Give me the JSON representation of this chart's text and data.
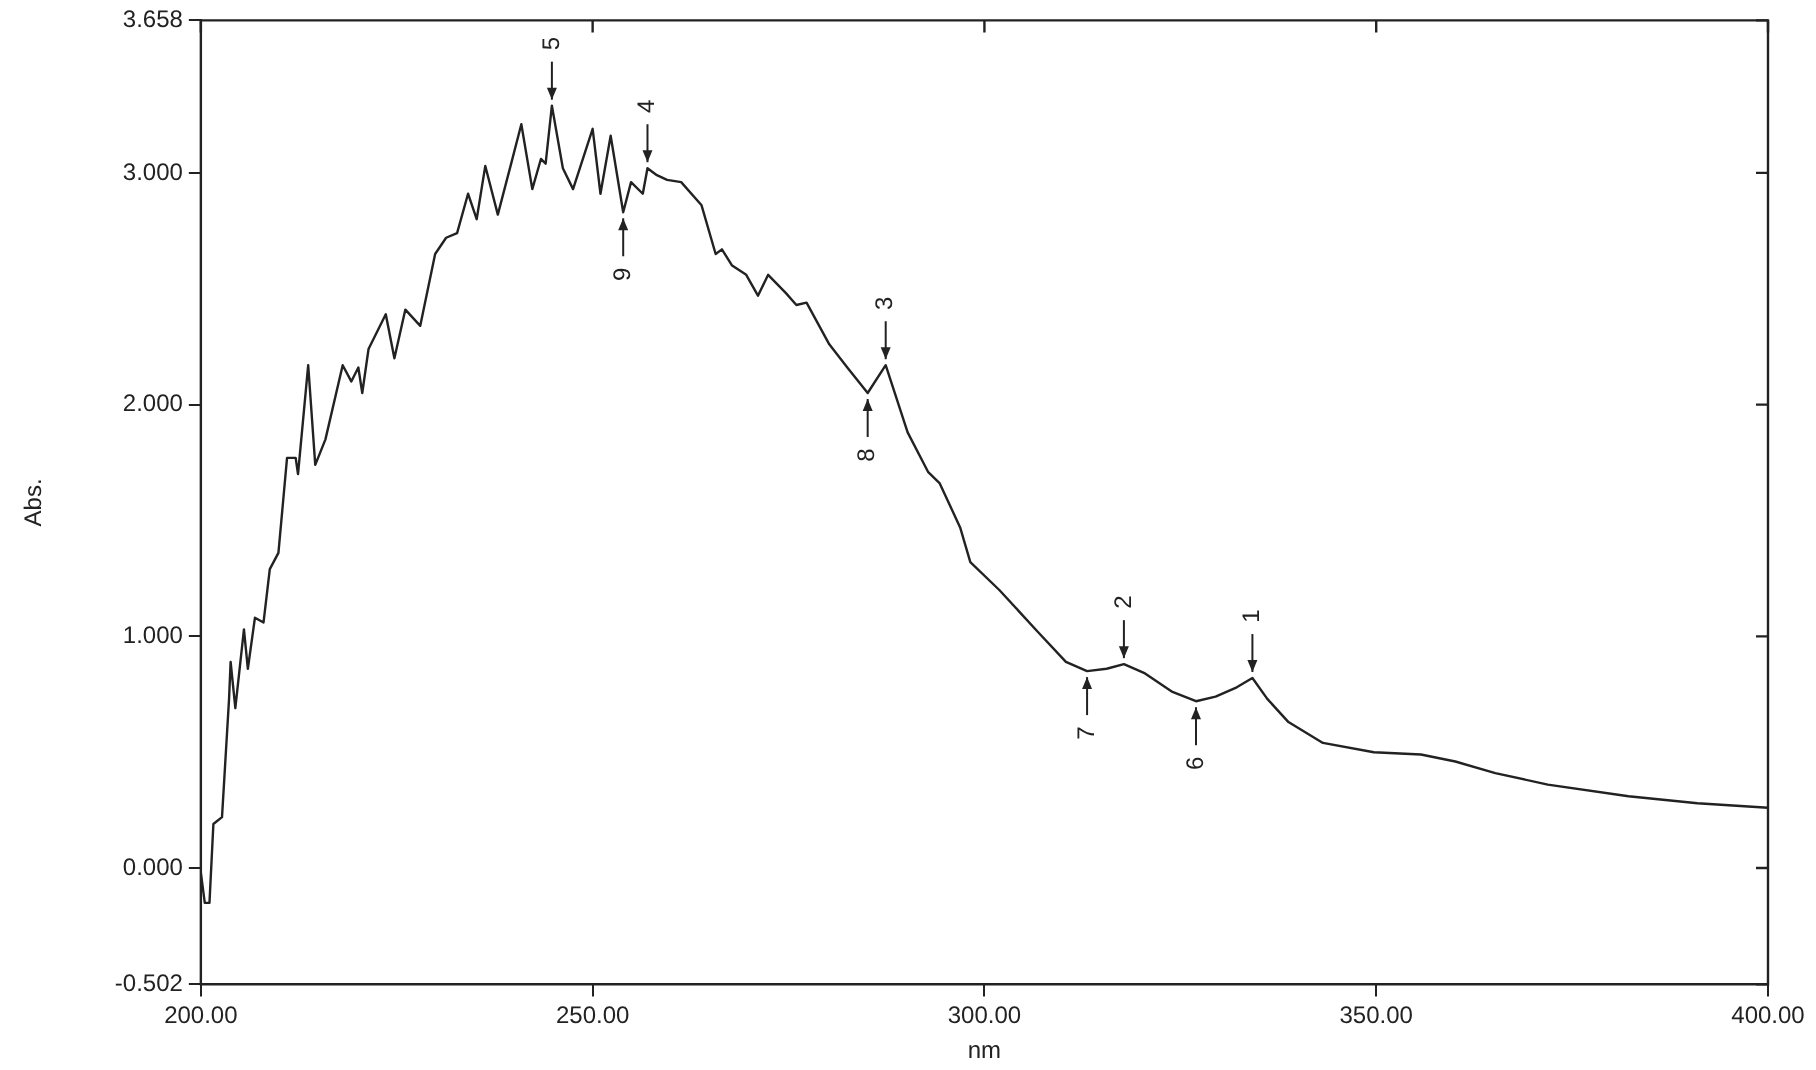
{
  "chart_data": {
    "type": "line",
    "xlabel": "nm",
    "ylabel": "Abs.",
    "xlim": [
      200,
      400
    ],
    "ylim": [
      -0.502,
      3.658
    ],
    "xticks": [
      {
        "value": 200,
        "label": "200.00"
      },
      {
        "value": 250,
        "label": "250.00"
      },
      {
        "value": 300,
        "label": "300.00"
      },
      {
        "value": 350,
        "label": "350.00"
      },
      {
        "value": 400,
        "label": "400.00"
      }
    ],
    "yticks": [
      {
        "value": -0.502,
        "label": "-0.502"
      },
      {
        "value": 0,
        "label": "0.000"
      },
      {
        "value": 1,
        "label": "1.000"
      },
      {
        "value": 2,
        "label": "2.000"
      },
      {
        "value": 3,
        "label": "3.000"
      },
      {
        "value": 3.658,
        "label": "3.658"
      }
    ],
    "grid": false,
    "legend": false,
    "marker": "none",
    "line_style": "solid",
    "x": [
      200.0,
      200.5,
      201.1,
      201.6,
      202.7,
      203.6,
      203.8,
      204.4,
      205.5,
      206.0,
      206.9,
      208.0,
      208.8,
      209.9,
      211.0,
      212.1,
      212.4,
      213.7,
      214.6,
      215.9,
      218.1,
      219.2,
      220.1,
      220.6,
      221.4,
      223.6,
      224.7,
      226.1,
      228.0,
      229.9,
      231.3,
      232.7,
      234.1,
      235.2,
      236.3,
      237.9,
      239.6,
      240.9,
      242.3,
      243.4,
      244.0,
      244.8,
      246.2,
      247.5,
      250.0,
      251.0,
      252.3,
      253.9,
      254.9,
      256.4,
      257.0,
      258.2,
      259.5,
      261.3,
      263.9,
      265.7,
      266.5,
      267.8,
      269.6,
      271.1,
      272.4,
      274.7,
      276.0,
      277.3,
      280.2,
      282.5,
      285.1,
      287.4,
      290.2,
      292.8,
      294.3,
      296.9,
      298.2,
      301.9,
      306.8,
      310.4,
      313.1,
      315.6,
      317.8,
      320.5,
      324.0,
      327.0,
      329.5,
      332.2,
      334.2,
      336.1,
      338.8,
      343.2,
      349.7,
      355.7,
      360.1,
      365.2,
      371.9,
      382.2,
      391.0,
      400.0
    ],
    "series": [
      {
        "color": "#222222",
        "values": [
          -0.02,
          -0.15,
          -0.15,
          0.19,
          0.22,
          0.73,
          0.89,
          0.69,
          1.03,
          0.86,
          1.08,
          1.06,
          1.29,
          1.36,
          1.77,
          1.77,
          1.7,
          2.17,
          1.74,
          1.85,
          2.17,
          2.1,
          2.16,
          2.05,
          2.24,
          2.39,
          2.2,
          2.41,
          2.34,
          2.65,
          2.72,
          2.74,
          2.91,
          2.8,
          3.03,
          2.82,
          3.04,
          3.21,
          2.93,
          3.06,
          3.04,
          3.29,
          3.02,
          2.93,
          3.19,
          2.91,
          3.16,
          2.83,
          2.96,
          2.91,
          3.02,
          2.99,
          2.97,
          2.96,
          2.86,
          2.65,
          2.67,
          2.6,
          2.56,
          2.47,
          2.56,
          2.48,
          2.43,
          2.44,
          2.26,
          2.16,
          2.05,
          2.17,
          1.88,
          1.71,
          1.66,
          1.47,
          1.32,
          1.2,
          1.02,
          0.89,
          0.85,
          0.86,
          0.88,
          0.84,
          0.76,
          0.72,
          0.74,
          0.78,
          0.82,
          0.73,
          0.63,
          0.54,
          0.5,
          0.49,
          0.46,
          0.41,
          0.36,
          0.31,
          0.28,
          0.26
        ]
      }
    ],
    "annotations": [
      {
        "text": "5",
        "x": 244.8,
        "y": 3.29
      },
      {
        "text": "9",
        "x": 253.9,
        "y": 2.83
      },
      {
        "text": "4",
        "x": 257.0,
        "y": 3.02
      },
      {
        "text": "8",
        "x": 285.1,
        "y": 2.05
      },
      {
        "text": "3",
        "x": 287.4,
        "y": 2.17
      },
      {
        "text": "7",
        "x": 313.1,
        "y": 0.85
      },
      {
        "text": "2",
        "x": 317.8,
        "y": 0.88
      },
      {
        "text": "6",
        "x": 327.0,
        "y": 0.72
      },
      {
        "text": "1",
        "x": 334.2,
        "y": 0.82
      }
    ]
  }
}
